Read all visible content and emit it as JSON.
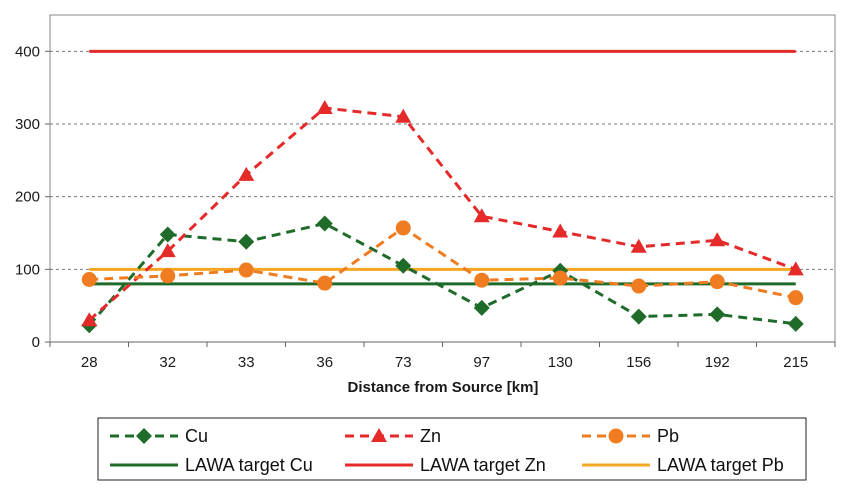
{
  "chart_data": {
    "type": "line",
    "categories": [
      "28",
      "32",
      "33",
      "36",
      "73",
      "97",
      "130",
      "156",
      "192",
      "215"
    ],
    "xlabel": "Distance from Source [km]",
    "ylabel": "",
    "ylim": [
      0,
      450
    ],
    "yticks": [
      0,
      100,
      200,
      300,
      400
    ],
    "grid": "horizontal dashed",
    "legend_position": "bottom",
    "series": [
      {
        "name": "Cu",
        "values": [
          23,
          148,
          138,
          163,
          105,
          47,
          98,
          35,
          38,
          25
        ],
        "color": "#1f6b2a",
        "style": "dashed",
        "marker": "diamond"
      },
      {
        "name": "Zn",
        "values": [
          30,
          125,
          230,
          322,
          310,
          173,
          152,
          131,
          140,
          100
        ],
        "color": "#e52a2a",
        "style": "dashed",
        "marker": "triangle"
      },
      {
        "name": "Pb",
        "values": [
          86,
          91,
          99,
          81,
          157,
          85,
          88,
          77,
          83,
          61
        ],
        "color": "#f07c22",
        "style": "dashed",
        "marker": "circle"
      },
      {
        "name": "LAWA target Cu",
        "values": [
          80,
          80,
          80,
          80,
          80,
          80,
          80,
          80,
          80,
          80
        ],
        "color": "#1f6b2a",
        "style": "solid",
        "marker": "none"
      },
      {
        "name": "LAWA target Zn",
        "values": [
          400,
          400,
          400,
          400,
          400,
          400,
          400,
          400,
          400,
          400
        ],
        "color": "#e52a2a",
        "style": "solid",
        "marker": "none"
      },
      {
        "name": "LAWA target Pb",
        "values": [
          100,
          100,
          100,
          100,
          100,
          100,
          100,
          100,
          100,
          100
        ],
        "color": "#f5a623",
        "style": "solid",
        "marker": "none"
      }
    ]
  }
}
